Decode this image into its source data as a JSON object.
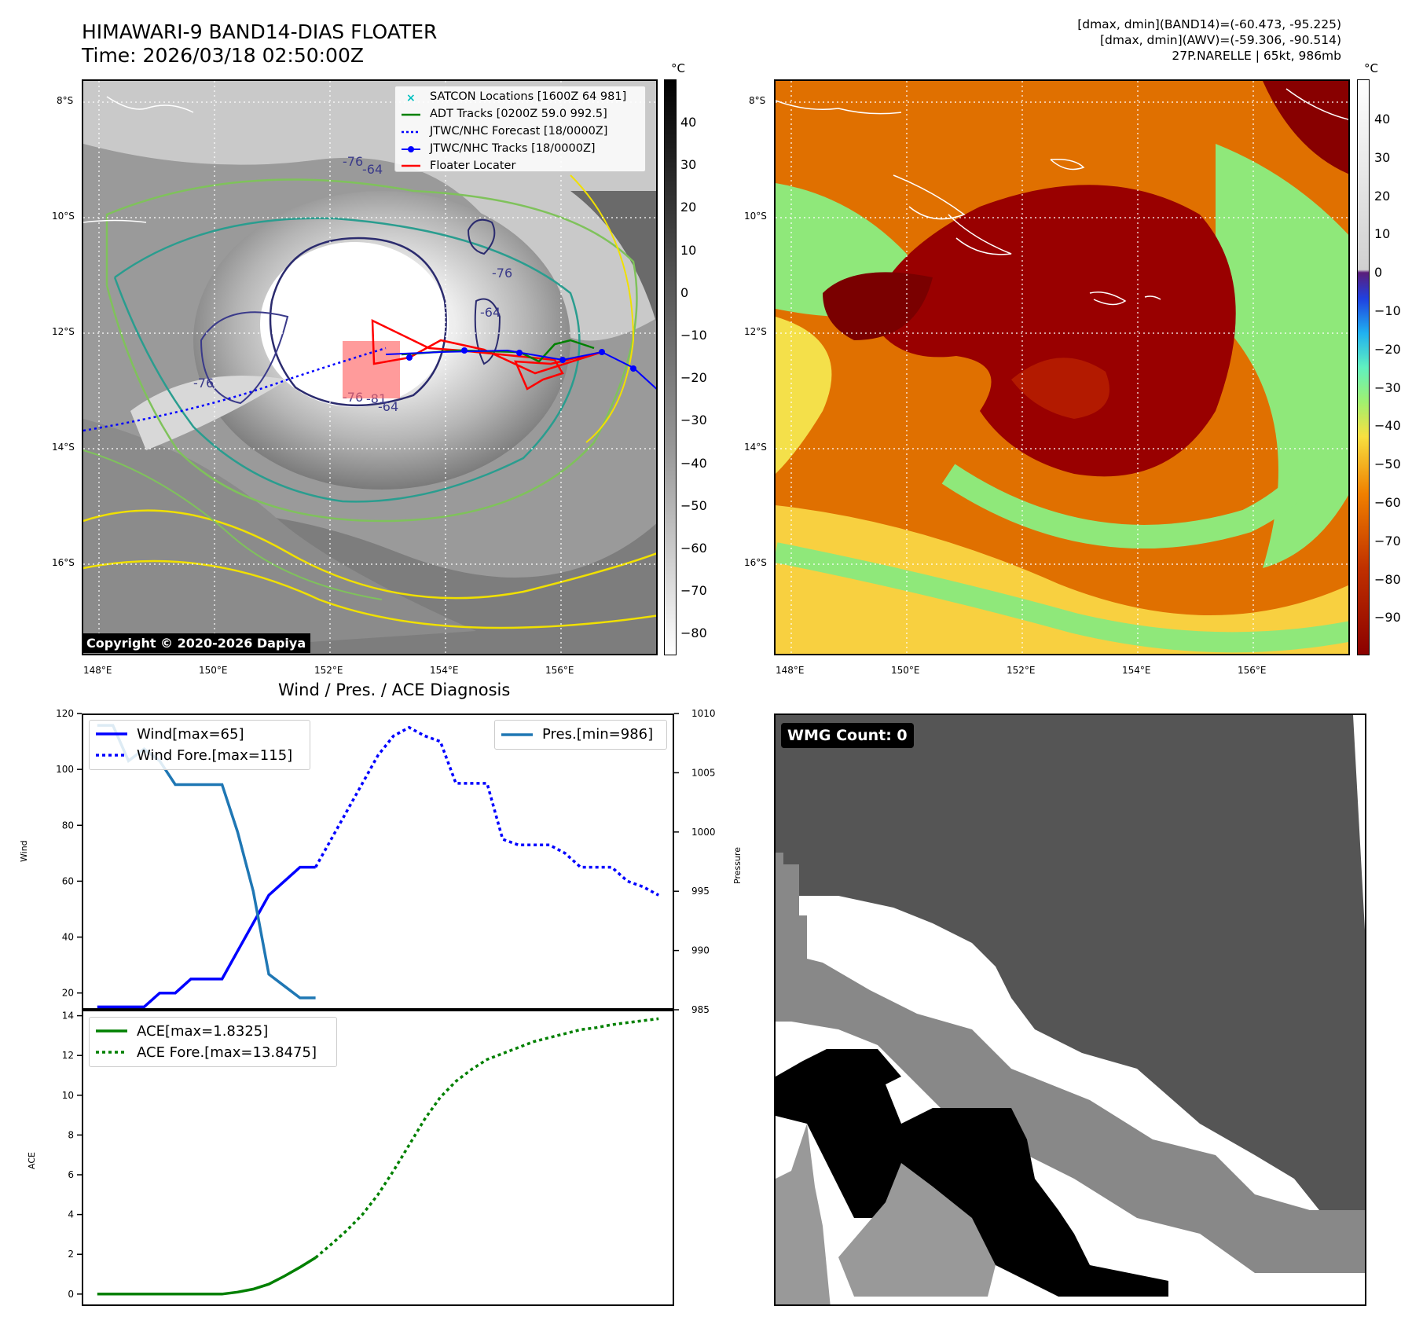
{
  "header": {
    "title_line1": "HIMAWARI-9 BAND14-DIAS FLOATER",
    "title_line2": "Time: 2026/03/18 02:50:00Z",
    "stats_line1": "[dmax, dmin](BAND14)=(-60.473, -95.225)",
    "stats_line2": "[dmax, dmin](AWV)=(-59.306, -90.514)",
    "stats_line3": "27P.NARELLE | 65kt, 986mb"
  },
  "map_axes": {
    "lat_labels": [
      "8°S",
      "10°S",
      "12°S",
      "14°S",
      "16°S"
    ],
    "lon_labels": [
      "148°E",
      "150°E",
      "152°E",
      "154°E",
      "156°E"
    ]
  },
  "map_left": {
    "copyright": "Copyright © 2020-2026 Dapiya",
    "legend": [
      "SATCON Locations [1600Z 64 981]",
      "ADT Tracks [0200Z 59.0 992.5]",
      "JTWC/NHC Forecast [18/0000Z]",
      "JTWC/NHC Tracks [18/0000Z]",
      "Floater Locater"
    ],
    "contour_labels": [
      "-76",
      "-64",
      "-76",
      "-81",
      "-76",
      "-64",
      "-76",
      "-64"
    ],
    "colorbar_unit": "°C",
    "colorbar_ticks": [
      "40",
      "30",
      "20",
      "10",
      "0",
      "−10",
      "−20",
      "−30",
      "−40",
      "−50",
      "−60",
      "−70",
      "−80"
    ]
  },
  "map_right": {
    "colorbar_unit": "°C",
    "colorbar_ticks": [
      "40",
      "30",
      "20",
      "10",
      "0",
      "−10",
      "−20",
      "−30",
      "−40",
      "−50",
      "−60",
      "−70",
      "−80",
      "−90"
    ]
  },
  "diagnosis_title": "Wind / Pres. / ACE Diagnosis",
  "wmg": {
    "label": "WMG Count: 0"
  },
  "colors": {
    "wind": "#0000ff",
    "pressure": "#1f77b4",
    "ace": "#008000",
    "adt": "#008000",
    "floater": "#ff0000",
    "satcon": "#00c0c0"
  },
  "chart_data": [
    {
      "type": "line",
      "name": "wind_pressure",
      "ylabel": "Wind",
      "y2label": "Pressure",
      "ylim": [
        14,
        120
      ],
      "y2lim": [
        985,
        1010
      ],
      "yticks": [
        "20",
        "40",
        "60",
        "80",
        "100",
        "120"
      ],
      "y2ticks": [
        "985",
        "990",
        "995",
        "1000",
        "1005",
        "1010"
      ],
      "series": [
        {
          "name": "Wind[max=65]",
          "style": "solid",
          "x": [
            0,
            1,
            2,
            3,
            4,
            5,
            6,
            7,
            8,
            9,
            10,
            11,
            12,
            13,
            14
          ],
          "values": [
            15,
            15,
            15,
            15,
            20,
            20,
            25,
            25,
            25,
            35,
            45,
            55,
            60,
            65,
            65
          ]
        },
        {
          "name": "Wind Fore.[max=115]",
          "style": "dotted",
          "x": [
            14,
            15,
            16,
            17,
            18,
            19,
            20,
            21,
            22,
            23,
            24,
            25,
            26,
            27,
            28,
            29,
            30,
            31,
            32,
            33,
            34,
            35,
            36
          ],
          "values": [
            65,
            75,
            85,
            95,
            105,
            112,
            115,
            112,
            110,
            95,
            95,
            95,
            75,
            73,
            73,
            73,
            70,
            65,
            65,
            65,
            60,
            58,
            55
          ]
        },
        {
          "name": "Pres.[min=986]",
          "style": "solid",
          "axis": "y2",
          "x": [
            0,
            1,
            2,
            3,
            4,
            5,
            6,
            7,
            8,
            9,
            10,
            11,
            12,
            13,
            14
          ],
          "values": [
            1009,
            1009,
            1006,
            1007,
            1006,
            1004,
            1004,
            1004,
            1004,
            1000,
            995,
            988,
            987,
            986,
            986
          ]
        }
      ]
    },
    {
      "type": "line",
      "name": "ace",
      "ylabel": "ACE",
      "ylim": [
        -0.6,
        14.3
      ],
      "yticks": [
        "0",
        "2",
        "4",
        "6",
        "8",
        "10",
        "12",
        "14"
      ],
      "series": [
        {
          "name": "ACE[max=1.8325]",
          "style": "solid",
          "x": [
            0,
            1,
            2,
            3,
            4,
            5,
            6,
            7,
            8,
            9,
            10,
            11,
            12,
            13,
            14
          ],
          "values": [
            0,
            0,
            0,
            0,
            0,
            0,
            0,
            0,
            0,
            0.1,
            0.25,
            0.5,
            0.9,
            1.35,
            1.8325
          ]
        },
        {
          "name": "ACE Fore.[max=13.8475]",
          "style": "dotted",
          "x": [
            14,
            15,
            16,
            17,
            18,
            19,
            20,
            21,
            22,
            23,
            24,
            25,
            26,
            27,
            28,
            29,
            30,
            31,
            32,
            33,
            34,
            35,
            36
          ],
          "values": [
            1.8325,
            2.5,
            3.2,
            4.0,
            5.0,
            6.2,
            7.5,
            8.8,
            9.9,
            10.7,
            11.3,
            11.8,
            12.1,
            12.4,
            12.7,
            12.9,
            13.1,
            13.3,
            13.4,
            13.55,
            13.65,
            13.75,
            13.8475
          ]
        }
      ]
    }
  ]
}
